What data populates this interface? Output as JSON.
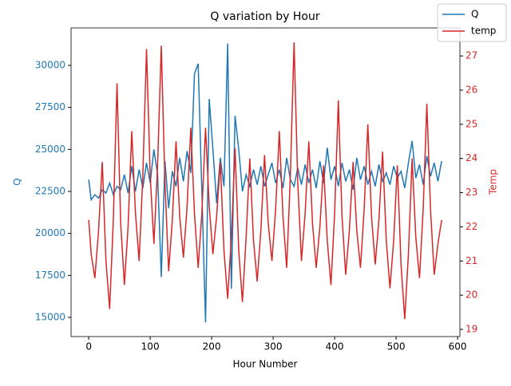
{
  "chart_data": {
    "type": "line",
    "title": "Q variation by Hour",
    "xlabel": "Hour Number",
    "ylabel": "Q",
    "y2label": "Temp",
    "x": [
      0,
      4,
      10,
      16,
      22,
      28,
      34,
      40,
      46,
      52,
      58,
      64,
      70,
      76,
      82,
      88,
      94,
      100,
      106,
      112,
      118,
      124,
      130,
      136,
      142,
      148,
      154,
      160,
      166,
      172,
      178,
      184,
      190,
      196,
      202,
      208,
      214,
      220,
      226,
      232,
      238,
      244,
      250,
      256,
      262,
      268,
      274,
      280,
      286,
      292,
      298,
      304,
      310,
      316,
      322,
      328,
      334,
      340,
      346,
      352,
      358,
      364,
      370,
      376,
      382,
      388,
      394,
      400,
      406,
      412,
      418,
      424,
      430,
      436,
      442,
      448,
      454,
      460,
      466,
      472,
      478,
      484,
      490,
      496,
      502,
      508,
      514,
      520,
      526,
      532,
      538,
      544,
      550,
      556,
      562,
      568,
      574
    ],
    "series": [
      {
        "name": "Q",
        "color": "#1f77b4",
        "axis": "y",
        "values": [
          23200,
          22000,
          22300,
          22100,
          22600,
          22400,
          23000,
          22300,
          22800,
          22600,
          23500,
          22400,
          24000,
          22500,
          23800,
          22700,
          24200,
          23000,
          25000,
          23500,
          17400,
          24300,
          21500,
          23700,
          22800,
          24500,
          23100,
          24900,
          23600,
          29500,
          30100,
          22500,
          14700,
          28000,
          25000,
          21800,
          24500,
          22800,
          31300,
          16700,
          27000,
          25000,
          22500,
          23500,
          22800,
          23800,
          22900,
          24000,
          22800,
          23500,
          24200,
          23000,
          23800,
          22700,
          24500,
          23200,
          22800,
          23900,
          22900,
          24100,
          23000,
          23800,
          22700,
          24300,
          23000,
          25100,
          23200,
          24000,
          22800,
          24200,
          23100,
          23800,
          22600,
          24500,
          23200,
          24000,
          22900,
          23700,
          22800,
          24100,
          23100,
          23600,
          22900,
          24000,
          23300,
          23700,
          22700,
          24200,
          25500,
          23300,
          24100,
          22900,
          24600,
          23400,
          24200,
          23100,
          24300
        ]
      },
      {
        "name": "temp",
        "color": "#d62728",
        "axis": "y2",
        "values": [
          22.2,
          21.2,
          20.5,
          21.9,
          23.9,
          21.0,
          19.6,
          22.2,
          26.2,
          22.1,
          20.3,
          22.0,
          24.8,
          22.4,
          21.0,
          23.5,
          27.2,
          23.5,
          21.5,
          23.8,
          27.3,
          23.3,
          20.7,
          22.2,
          24.5,
          22.3,
          21.1,
          22.6,
          24.9,
          22.4,
          20.8,
          22.4,
          24.9,
          22.6,
          21.2,
          22.3,
          23.9,
          21.3,
          19.9,
          21.7,
          24.3,
          21.3,
          19.8,
          21.7,
          24.0,
          21.6,
          20.4,
          21.9,
          24.1,
          22.1,
          21.0,
          22.5,
          24.8,
          22.3,
          20.8,
          23.5,
          27.4,
          23.3,
          21.0,
          22.4,
          24.5,
          22.1,
          20.8,
          22.0,
          23.8,
          21.6,
          20.3,
          22.4,
          25.7,
          22.3,
          20.6,
          21.9,
          23.9,
          21.9,
          20.8,
          22.5,
          25.0,
          22.3,
          20.9,
          22.2,
          24.2,
          21.6,
          20.2,
          21.6,
          23.8,
          20.9,
          19.3,
          21.2,
          24.0,
          21.7,
          20.5,
          22.5,
          25.6,
          22.5,
          20.6,
          21.5,
          22.2
        ]
      }
    ],
    "xlim": [
      -28.75,
      603.75
    ],
    "xticks": [
      0,
      100,
      200,
      300,
      400,
      500,
      600
    ],
    "ylim": [
      13860,
      32230
    ],
    "yticks": [
      15000,
      17500,
      20000,
      22500,
      25000,
      27500,
      30000
    ],
    "y2lim": [
      18.79,
      27.82
    ],
    "y2ticks": [
      19,
      20,
      21,
      22,
      23,
      24,
      25,
      26,
      27
    ],
    "legend": "upper right"
  }
}
